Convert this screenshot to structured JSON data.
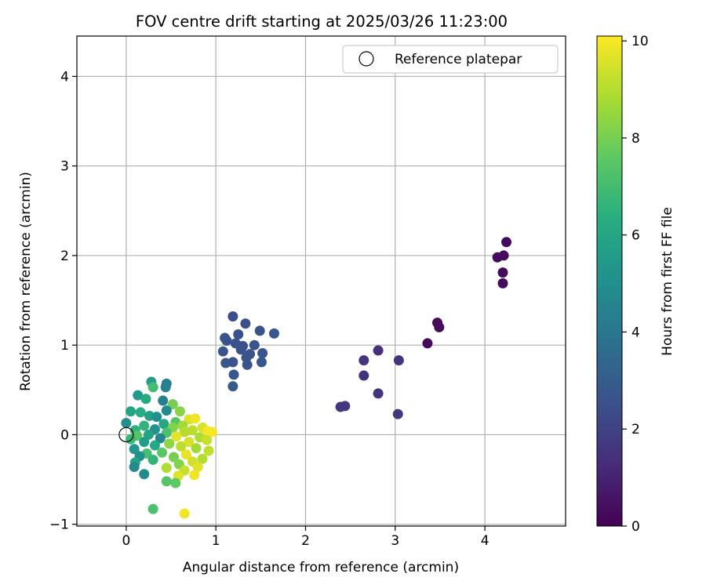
{
  "chart_data": {
    "type": "scatter",
    "title": "FOV centre drift starting at 2025/03/26 11:23:00",
    "xlabel": "Angular distance from reference (arcmin)",
    "ylabel": "Rotation from reference (arcmin)",
    "xlim": [
      -0.55,
      4.9
    ],
    "ylim": [
      -1.02,
      4.45
    ],
    "xticks": [
      0,
      1,
      2,
      3,
      4
    ],
    "yticks": [
      -1,
      0,
      1,
      2,
      3,
      4
    ],
    "grid": true,
    "legend": {
      "location": "upper right",
      "entries": [
        "Reference platepar"
      ]
    },
    "colorbar": {
      "label": "Hours from first FF file",
      "min": 0,
      "max": 10.1,
      "ticks": [
        0,
        2,
        4,
        6,
        8,
        10
      ],
      "colormap": "viridis"
    },
    "reference_point": {
      "x": 0,
      "y": 0,
      "label": "Reference platepar"
    },
    "series": [
      {
        "color_value_unit": "hours",
        "points": [
          {
            "x": 4.24,
            "y": 2.15,
            "h": 0.3
          },
          {
            "x": 4.21,
            "y": 2.0,
            "h": 0.3
          },
          {
            "x": 4.14,
            "y": 1.98,
            "h": 0.3
          },
          {
            "x": 4.2,
            "y": 1.81,
            "h": 0.3
          },
          {
            "x": 4.2,
            "y": 1.69,
            "h": 0.3
          },
          {
            "x": 3.47,
            "y": 1.25,
            "h": 0.3
          },
          {
            "x": 3.49,
            "y": 1.2,
            "h": 0.3
          },
          {
            "x": 3.36,
            "y": 1.02,
            "h": 0.2
          },
          {
            "x": 2.81,
            "y": 0.94,
            "h": 1.4
          },
          {
            "x": 2.65,
            "y": 0.83,
            "h": 1.5
          },
          {
            "x": 3.04,
            "y": 0.83,
            "h": 1.5
          },
          {
            "x": 2.65,
            "y": 0.66,
            "h": 1.5
          },
          {
            "x": 2.81,
            "y": 0.46,
            "h": 1.5
          },
          {
            "x": 2.39,
            "y": 0.31,
            "h": 1.6
          },
          {
            "x": 2.44,
            "y": 0.32,
            "h": 1.6
          },
          {
            "x": 3.03,
            "y": 0.23,
            "h": 1.6
          },
          {
            "x": 1.19,
            "y": 1.32,
            "h": 2.4
          },
          {
            "x": 1.33,
            "y": 1.24,
            "h": 2.5
          },
          {
            "x": 1.49,
            "y": 1.16,
            "h": 2.6
          },
          {
            "x": 1.65,
            "y": 1.13,
            "h": 2.7
          },
          {
            "x": 1.25,
            "y": 1.12,
            "h": 2.5
          },
          {
            "x": 1.1,
            "y": 1.08,
            "h": 2.6
          },
          {
            "x": 1.12,
            "y": 1.05,
            "h": 2.6
          },
          {
            "x": 1.22,
            "y": 1.02,
            "h": 2.6
          },
          {
            "x": 1.3,
            "y": 0.99,
            "h": 2.5
          },
          {
            "x": 1.43,
            "y": 1.0,
            "h": 2.6
          },
          {
            "x": 1.28,
            "y": 0.95,
            "h": 2.6
          },
          {
            "x": 1.08,
            "y": 0.93,
            "h": 2.7
          },
          {
            "x": 1.38,
            "y": 0.9,
            "h": 2.6
          },
          {
            "x": 1.52,
            "y": 0.91,
            "h": 2.7
          },
          {
            "x": 1.34,
            "y": 0.86,
            "h": 2.6
          },
          {
            "x": 1.19,
            "y": 0.81,
            "h": 2.7
          },
          {
            "x": 1.11,
            "y": 0.8,
            "h": 2.7
          },
          {
            "x": 1.35,
            "y": 0.78,
            "h": 2.6
          },
          {
            "x": 1.51,
            "y": 0.81,
            "h": 2.8
          },
          {
            "x": 1.2,
            "y": 0.67,
            "h": 2.8
          },
          {
            "x": 1.19,
            "y": 0.54,
            "h": 2.9
          },
          {
            "x": 0.28,
            "y": 0.59,
            "h": 5.6
          },
          {
            "x": 0.45,
            "y": 0.57,
            "h": 4.3
          },
          {
            "x": 0.3,
            "y": 0.53,
            "h": 7.0
          },
          {
            "x": 0.44,
            "y": 0.53,
            "h": 4.5
          },
          {
            "x": 0.13,
            "y": 0.44,
            "h": 5.5
          },
          {
            "x": 0.22,
            "y": 0.4,
            "h": 6.2
          },
          {
            "x": 0.41,
            "y": 0.38,
            "h": 4.4
          },
          {
            "x": 0.52,
            "y": 0.34,
            "h": 8.0
          },
          {
            "x": 0.6,
            "y": 0.26,
            "h": 8.3
          },
          {
            "x": 0.45,
            "y": 0.27,
            "h": 4.8
          },
          {
            "x": 0.05,
            "y": 0.26,
            "h": 5.9
          },
          {
            "x": 0.16,
            "y": 0.25,
            "h": 6.3
          },
          {
            "x": 0.26,
            "y": 0.21,
            "h": 5.8
          },
          {
            "x": 0.34,
            "y": 0.2,
            "h": 5.1
          },
          {
            "x": 0.7,
            "y": 0.17,
            "h": 9.6
          },
          {
            "x": 0.77,
            "y": 0.18,
            "h": 9.9
          },
          {
            "x": 0.55,
            "y": 0.14,
            "h": 7.4
          },
          {
            "x": 0.0,
            "y": 0.13,
            "h": 5.0
          },
          {
            "x": 0.42,
            "y": 0.12,
            "h": 6.0
          },
          {
            "x": 0.63,
            "y": 0.1,
            "h": 8.7
          },
          {
            "x": 0.2,
            "y": 0.1,
            "h": 6.6
          },
          {
            "x": 0.85,
            "y": 0.08,
            "h": 9.5
          },
          {
            "x": 0.52,
            "y": 0.08,
            "h": 8.2
          },
          {
            "x": 0.32,
            "y": 0.06,
            "h": 5.2
          },
          {
            "x": 0.1,
            "y": 0.05,
            "h": 6.5
          },
          {
            "x": 0.74,
            "y": 0.05,
            "h": 9.1
          },
          {
            "x": 0.91,
            "y": 0.04,
            "h": 10.0
          },
          {
            "x": 0.96,
            "y": 0.03,
            "h": 10.0
          },
          {
            "x": 0.65,
            "y": 0.03,
            "h": 9.0
          },
          {
            "x": 0.45,
            "y": 0.02,
            "h": 7.2
          },
          {
            "x": 0.25,
            "y": 0.0,
            "h": 5.9
          },
          {
            "x": 0.12,
            "y": -0.01,
            "h": 7.4
          },
          {
            "x": 0.56,
            "y": -0.02,
            "h": 9.7
          },
          {
            "x": 0.82,
            "y": -0.03,
            "h": 8.9
          },
          {
            "x": 0.38,
            "y": -0.04,
            "h": 4.7
          },
          {
            "x": 0.05,
            "y": -0.05,
            "h": 6.8
          },
          {
            "x": 0.9,
            "y": -0.06,
            "h": 9.3
          },
          {
            "x": 0.7,
            "y": -0.08,
            "h": 9.5
          },
          {
            "x": 0.2,
            "y": -0.08,
            "h": 5.6
          },
          {
            "x": 0.48,
            "y": -0.1,
            "h": 8.4
          },
          {
            "x": 0.32,
            "y": -0.12,
            "h": 6.1
          },
          {
            "x": 0.61,
            "y": -0.13,
            "h": 9.1
          },
          {
            "x": 0.78,
            "y": -0.15,
            "h": 8.7
          },
          {
            "x": 0.09,
            "y": -0.16,
            "h": 5.3
          },
          {
            "x": 0.92,
            "y": -0.18,
            "h": 9.2
          },
          {
            "x": 0.4,
            "y": -0.2,
            "h": 7.5
          },
          {
            "x": 0.23,
            "y": -0.21,
            "h": 7.1
          },
          {
            "x": 0.67,
            "y": -0.22,
            "h": 9.8
          },
          {
            "x": 0.15,
            "y": -0.24,
            "h": 5.1
          },
          {
            "x": 0.53,
            "y": -0.25,
            "h": 8.0
          },
          {
            "x": 0.85,
            "y": -0.27,
            "h": 9.0
          },
          {
            "x": 0.3,
            "y": -0.28,
            "h": 6.6
          },
          {
            "x": 0.74,
            "y": -0.3,
            "h": 9.4
          },
          {
            "x": 0.1,
            "y": -0.31,
            "h": 5.8
          },
          {
            "x": 0.59,
            "y": -0.33,
            "h": 8.2
          },
          {
            "x": 0.8,
            "y": -0.36,
            "h": 9.6
          },
          {
            "x": 0.09,
            "y": -0.36,
            "h": 4.8
          },
          {
            "x": 0.45,
            "y": -0.37,
            "h": 8.9
          },
          {
            "x": 0.65,
            "y": -0.4,
            "h": 9.3
          },
          {
            "x": 0.2,
            "y": -0.44,
            "h": 4.9
          },
          {
            "x": 0.76,
            "y": -0.45,
            "h": 9.9
          },
          {
            "x": 0.58,
            "y": -0.46,
            "h": 9.6
          },
          {
            "x": 0.45,
            "y": -0.52,
            "h": 7.4
          },
          {
            "x": 0.55,
            "y": -0.54,
            "h": 7.6
          },
          {
            "x": 0.3,
            "y": -0.83,
            "h": 7.2
          },
          {
            "x": 0.65,
            "y": -0.88,
            "h": 9.9
          }
        ]
      }
    ]
  }
}
